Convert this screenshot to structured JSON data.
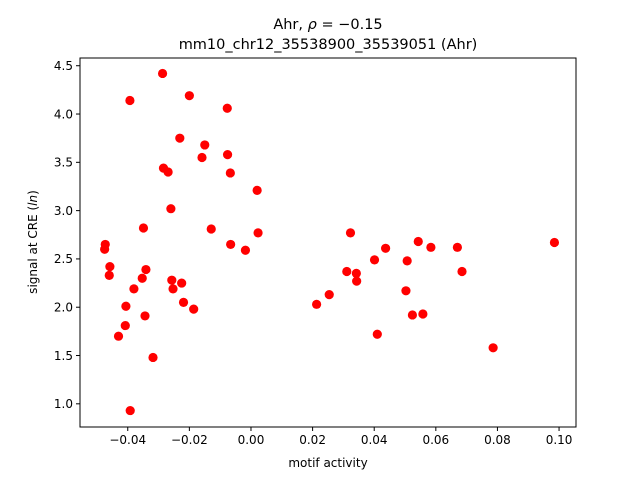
{
  "chart_data": {
    "type": "scatter",
    "title_line1_prefix": "Ahr, ",
    "title_line1_rho": "ρ",
    "title_line1_suffix": " = −0.15",
    "title_line2": "mm10_chr12_35538900_35539051 (Ahr)",
    "xlabel": "motif activity",
    "ylabel_prefix": "signal at CRE (",
    "ylabel_italic": "ln",
    "ylabel_suffix": ")",
    "xlim": [
      -0.0555,
      0.1055
    ],
    "ylim": [
      0.76,
      4.58
    ],
    "xticks": [
      -0.04,
      -0.02,
      0.0,
      0.02,
      0.04,
      0.06,
      0.08,
      0.1
    ],
    "xtick_labels": [
      "−0.04",
      "−0.02",
      "0.00",
      "0.02",
      "0.04",
      "0.06",
      "0.08",
      "0.10"
    ],
    "yticks": [
      1.0,
      1.5,
      2.0,
      2.5,
      3.0,
      3.5,
      4.0,
      4.5
    ],
    "ytick_labels": [
      "1.0",
      "1.5",
      "2.0",
      "2.5",
      "3.0",
      "3.5",
      "4.0",
      "4.5"
    ],
    "marker_color": "#ff0000",
    "grid": false,
    "points": [
      [
        -0.0475,
        2.6
      ],
      [
        -0.0473,
        2.65
      ],
      [
        -0.046,
        2.33
      ],
      [
        -0.0458,
        2.42
      ],
      [
        -0.043,
        1.7
      ],
      [
        -0.0408,
        1.81
      ],
      [
        -0.0406,
        2.01
      ],
      [
        -0.0393,
        4.14
      ],
      [
        -0.0392,
        0.93
      ],
      [
        -0.038,
        2.19
      ],
      [
        -0.0353,
        2.3
      ],
      [
        -0.0349,
        2.82
      ],
      [
        -0.0344,
        1.91
      ],
      [
        -0.0341,
        2.39
      ],
      [
        -0.0318,
        1.48
      ],
      [
        -0.0287,
        4.42
      ],
      [
        -0.0284,
        3.44
      ],
      [
        -0.0269,
        3.4
      ],
      [
        -0.026,
        3.02
      ],
      [
        -0.0257,
        2.28
      ],
      [
        -0.0253,
        2.19
      ],
      [
        -0.0231,
        3.75
      ],
      [
        -0.0225,
        2.25
      ],
      [
        -0.0219,
        2.05
      ],
      [
        -0.02,
        4.19
      ],
      [
        -0.0186,
        1.98
      ],
      [
        -0.0159,
        3.55
      ],
      [
        -0.015,
        3.68
      ],
      [
        -0.0129,
        2.81
      ],
      [
        -0.0077,
        4.06
      ],
      [
        -0.0076,
        3.58
      ],
      [
        -0.0067,
        3.39
      ],
      [
        -0.0066,
        2.65
      ],
      [
        -0.0018,
        2.59
      ],
      [
        0.002,
        3.21
      ],
      [
        0.0023,
        2.77
      ],
      [
        0.0213,
        2.03
      ],
      [
        0.0254,
        2.13
      ],
      [
        0.0311,
        2.37
      ],
      [
        0.0323,
        2.77
      ],
      [
        0.0342,
        2.35
      ],
      [
        0.0343,
        2.27
      ],
      [
        0.0401,
        2.49
      ],
      [
        0.041,
        1.72
      ],
      [
        0.0437,
        2.61
      ],
      [
        0.0503,
        2.17
      ],
      [
        0.0507,
        2.48
      ],
      [
        0.0524,
        1.92
      ],
      [
        0.0543,
        2.68
      ],
      [
        0.0558,
        1.93
      ],
      [
        0.0584,
        2.62
      ],
      [
        0.067,
        2.62
      ],
      [
        0.0685,
        2.37
      ],
      [
        0.0786,
        1.58
      ],
      [
        0.0985,
        2.67
      ]
    ]
  }
}
